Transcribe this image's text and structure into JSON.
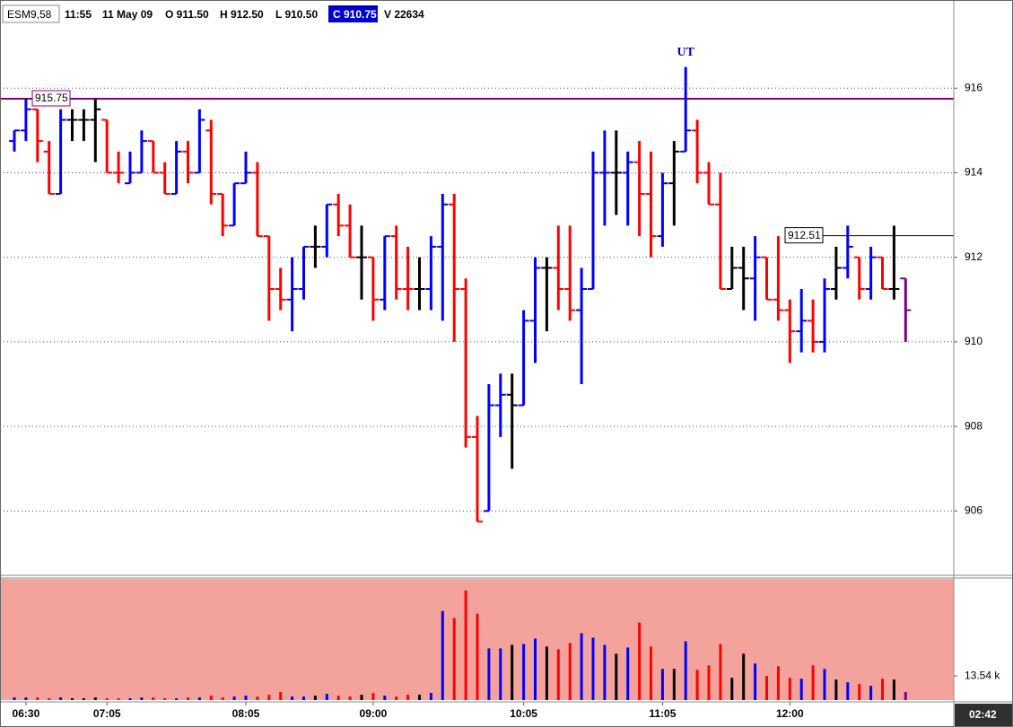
{
  "header": [
    "ESM9,58",
    "11:55",
    "11 May 09",
    "O 911.50",
    "H 912.50",
    "L 910.50",
    "C 910.75",
    "V 22634"
  ],
  "timer": "02:42",
  "chart_data": [
    {
      "type": "ohlc",
      "annotation": "UT",
      "categories": [
        null,
        "06:30",
        null,
        null,
        null,
        null,
        null,
        null,
        "07:05",
        null,
        null,
        null,
        null,
        null,
        null,
        null,
        null,
        null,
        null,
        null,
        "08:05",
        null,
        null,
        null,
        null,
        null,
        null,
        null,
        null,
        null,
        null,
        "09:00",
        null,
        null,
        null,
        null,
        null,
        null,
        null,
        null,
        null,
        null,
        null,
        null,
        "10:05",
        null,
        null,
        null,
        null,
        null,
        null,
        null,
        null,
        null,
        null,
        null,
        "11:05",
        null,
        null,
        null,
        null,
        null,
        null,
        null,
        null,
        null,
        null,
        "12:00",
        null,
        null,
        null,
        null,
        null,
        null,
        null,
        null,
        null,
        null
      ],
      "open": [
        914.75,
        915.0,
        915.5,
        914.5,
        913.5,
        915.25,
        915.25,
        915.25,
        915.25,
        914.0,
        913.75,
        914.0,
        914.75,
        914.0,
        913.5,
        914.5,
        914.0,
        915.0,
        913.5,
        912.75,
        913.75,
        914.0,
        912.5,
        911.25,
        911.0,
        911.25,
        912.25,
        912.25,
        913.25,
        912.75,
        912.0,
        912.0,
        911.0,
        912.5,
        911.25,
        911.25,
        911.25,
        912.25,
        913.25,
        911.25,
        907.75,
        906.0,
        908.5,
        908.75,
        908.5,
        910.5,
        911.75,
        911.75,
        911.25,
        910.75,
        911.25,
        914.0,
        914.0,
        914.0,
        914.25,
        913.5,
        912.5,
        913.75,
        914.5,
        915.0,
        914.0,
        913.25,
        911.25,
        911.75,
        911.5,
        912.0,
        911.0,
        910.75,
        910.25,
        910.5,
        910.0,
        911.25,
        911.75,
        912.0,
        911.25,
        912.0,
        911.25,
        911.5
      ],
      "high": [
        915.0,
        915.75,
        915.5,
        914.75,
        915.5,
        915.5,
        915.5,
        915.75,
        915.25,
        914.5,
        914.5,
        915.0,
        914.75,
        914.25,
        914.75,
        914.75,
        915.5,
        915.25,
        913.5,
        913.75,
        914.5,
        914.25,
        912.5,
        911.75,
        912.0,
        912.25,
        912.75,
        913.25,
        913.5,
        913.25,
        912.75,
        912.0,
        912.5,
        912.75,
        912.25,
        912.0,
        912.5,
        913.5,
        913.5,
        911.5,
        908.25,
        909.0,
        909.25,
        909.25,
        910.75,
        912.0,
        912.0,
        912.75,
        912.75,
        911.75,
        914.5,
        915.0,
        915.0,
        914.5,
        914.75,
        914.5,
        914.0,
        914.75,
        916.5,
        915.25,
        914.25,
        914.0,
        912.25,
        912.25,
        912.5,
        912.0,
        912.5,
        911.0,
        911.25,
        911.0,
        911.5,
        912.25,
        912.75,
        912.0,
        912.25,
        912.0,
        912.75,
        911.5
      ],
      "low": [
        914.5,
        914.75,
        914.25,
        913.5,
        913.5,
        914.75,
        914.75,
        914.25,
        914.0,
        913.75,
        913.75,
        914.0,
        914.0,
        913.5,
        913.5,
        913.75,
        914.0,
        913.25,
        912.5,
        912.75,
        913.75,
        912.5,
        910.5,
        910.75,
        910.25,
        911.0,
        911.75,
        912.0,
        912.5,
        912.0,
        911.0,
        910.5,
        910.75,
        911.0,
        910.75,
        910.75,
        910.75,
        910.5,
        910.0,
        907.5,
        905.75,
        906.0,
        907.75,
        907.0,
        908.5,
        909.5,
        910.25,
        910.75,
        910.5,
        909.0,
        911.25,
        912.75,
        913.0,
        912.75,
        912.5,
        912.0,
        912.25,
        912.75,
        914.5,
        913.75,
        913.25,
        911.25,
        911.25,
        910.75,
        910.5,
        911.0,
        910.5,
        909.5,
        909.75,
        909.75,
        909.75,
        911.0,
        911.5,
        911.0,
        911.0,
        911.25,
        911.0,
        910.0
      ],
      "close": [
        915.0,
        915.5,
        914.75,
        913.5,
        915.25,
        915.25,
        915.25,
        915.5,
        914.0,
        914.0,
        914.0,
        914.75,
        914.0,
        913.5,
        914.5,
        914.0,
        915.25,
        913.5,
        912.75,
        913.75,
        914.0,
        912.5,
        911.25,
        911.0,
        911.25,
        912.25,
        912.25,
        913.25,
        912.75,
        912.0,
        912.0,
        911.0,
        912.5,
        911.25,
        911.25,
        911.25,
        912.25,
        913.25,
        911.25,
        907.75,
        905.75,
        908.5,
        908.75,
        908.5,
        910.5,
        911.75,
        911.75,
        911.25,
        910.75,
        911.25,
        914.0,
        914.0,
        914.0,
        914.25,
        913.5,
        912.5,
        913.75,
        914.5,
        915.0,
        914.0,
        913.25,
        911.25,
        911.75,
        911.5,
        912.0,
        911.0,
        910.75,
        910.25,
        910.5,
        910.0,
        911.25,
        911.75,
        912.25,
        911.25,
        912.0,
        911.25,
        911.25,
        910.75
      ],
      "bar_colors": "bbrrbkkkrrbbrrbrbrrbbrrrbbkbrrkrbrrkbbrrrbbkbbkrrbbbkbrrbkbrrrkkbrrrbrbkbrbrkp",
      "palette": {
        "b": "#0000ff",
        "r": "#ff0000",
        "k": "#000000",
        "p": "#800080"
      },
      "ylim": [
        904.5,
        918
      ],
      "yticks": [
        906,
        908,
        910,
        912,
        914,
        916
      ],
      "grid": true,
      "hlines": [
        {
          "value": 915.75,
          "color": "#800080",
          "label_side": "left"
        },
        {
          "value": 912.51,
          "color": "#000000",
          "label_side": "right"
        }
      ]
    },
    {
      "type": "bar",
      "values": [
        1.5,
        1.5,
        1.5,
        1,
        1.5,
        1,
        1,
        1.5,
        1,
        1,
        1,
        1.5,
        1.5,
        1,
        1,
        1.5,
        1.5,
        2.5,
        1.5,
        2,
        2.5,
        2,
        3,
        4.5,
        2,
        2,
        2.5,
        3.5,
        2.5,
        2,
        3,
        4,
        2.5,
        2,
        3,
        3,
        4,
        50,
        46,
        61.5,
        48.5,
        29,
        29,
        31,
        31.5,
        34.5,
        30,
        28.5,
        32,
        37.5,
        35,
        31,
        26,
        29.5,
        43.5,
        30,
        17.5,
        17.5,
        33,
        17,
        19.5,
        31.5,
        12.5,
        26,
        20.5,
        13.5,
        19,
        12.5,
        12,
        19.5,
        17.5,
        11.5,
        10,
        9,
        8,
        12,
        11.5,
        4.5
      ],
      "background": "#f4a39c",
      "ylim": [
        0,
        68
      ],
      "yticks": [
        {
          "value": 13.54,
          "label": "13.54 k"
        }
      ]
    }
  ]
}
